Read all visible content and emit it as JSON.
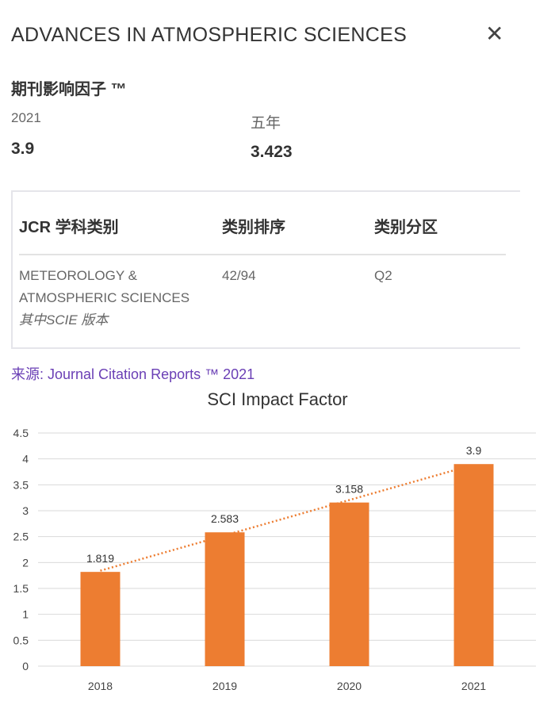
{
  "header": {
    "title": "ADVANCES IN ATMOSPHERIC SCIENCES",
    "close_icon": "close-icon"
  },
  "impact": {
    "heading": "期刊影响因子 ™",
    "year_label": "2021",
    "year_value": "3.9",
    "five_label": "五年",
    "five_value": "3.423"
  },
  "jcr": {
    "headers": [
      "JCR 学科类别",
      "类别排序",
      "类别分区"
    ],
    "category_line1": "METEOROLOGY &",
    "category_line2": "ATMOSPHERIC SCIENCES",
    "edition": "其中SCIE 版本",
    "rank": "42/94",
    "quartile": "Q2"
  },
  "source": "来源: Journal Citation Reports ™ 2021",
  "chart_data": {
    "type": "bar",
    "title": "SCI Impact Factor",
    "categories": [
      "2018",
      "2019",
      "2020",
      "2021"
    ],
    "values": [
      1.819,
      2.583,
      3.158,
      3.9
    ],
    "data_labels": [
      "1.819",
      "2.583",
      "3.158",
      "3.9"
    ],
    "ylim": [
      0,
      4.5
    ],
    "yticks": [
      "0",
      "0.5",
      "1",
      "1.5",
      "2",
      "2.5",
      "3",
      "3.5",
      "4",
      "4.5"
    ],
    "grid": true,
    "trendline": "linear dotted",
    "bar_color": "#ED7D31",
    "xlabel": "",
    "ylabel": ""
  }
}
